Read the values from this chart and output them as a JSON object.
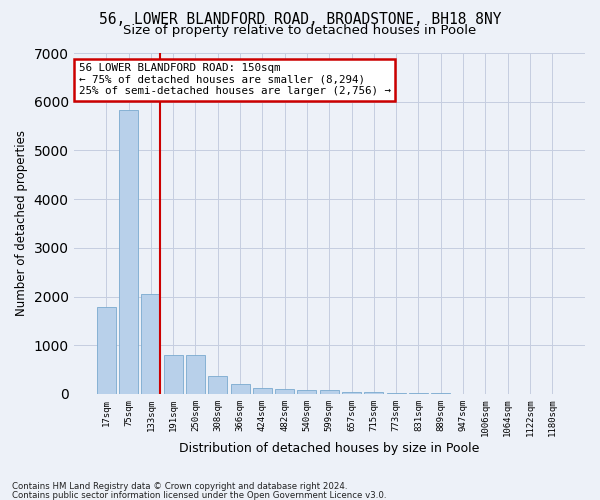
{
  "title": "56, LOWER BLANDFORD ROAD, BROADSTONE, BH18 8NY",
  "subtitle": "Size of property relative to detached houses in Poole",
  "xlabel": "Distribution of detached houses by size in Poole",
  "ylabel": "Number of detached properties",
  "categories": [
    "17sqm",
    "75sqm",
    "133sqm",
    "191sqm",
    "250sqm",
    "308sqm",
    "366sqm",
    "424sqm",
    "482sqm",
    "540sqm",
    "599sqm",
    "657sqm",
    "715sqm",
    "773sqm",
    "831sqm",
    "889sqm",
    "947sqm",
    "1006sqm",
    "1064sqm",
    "1122sqm",
    "1180sqm"
  ],
  "values": [
    1780,
    5820,
    2060,
    800,
    790,
    360,
    205,
    120,
    95,
    85,
    80,
    48,
    45,
    28,
    18,
    12,
    8,
    8,
    6,
    4,
    5
  ],
  "bar_color": "#b8d0ea",
  "bar_edge_color": "#7aaacf",
  "bg_color": "#edf1f8",
  "grid_color": "#c5cde0",
  "property_bin_index": 2,
  "annotation_title": "56 LOWER BLANDFORD ROAD: 150sqm",
  "annotation_line1": "← 75% of detached houses are smaller (8,294)",
  "annotation_line2": "25% of semi-detached houses are larger (2,756) →",
  "annotation_box_color": "#ffffff",
  "annotation_border_color": "#cc0000",
  "vline_color": "#cc0000",
  "footer1": "Contains HM Land Registry data © Crown copyright and database right 2024.",
  "footer2": "Contains public sector information licensed under the Open Government Licence v3.0.",
  "ylim": [
    0,
    7000
  ],
  "title_fontsize": 10.5,
  "subtitle_fontsize": 9.5,
  "yticks": [
    0,
    1000,
    2000,
    3000,
    4000,
    5000,
    6000,
    7000
  ]
}
